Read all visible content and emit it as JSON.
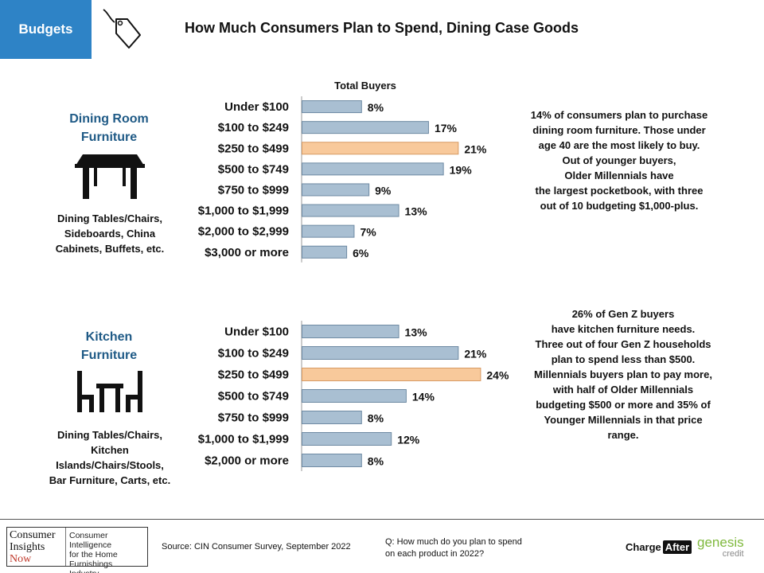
{
  "header": {
    "badge_label": "Budgets",
    "title": "How Much Consumers Plan to Spend, Dining Case Goods",
    "icon": "price-tag-icon"
  },
  "chart_data": [
    {
      "type": "bar",
      "orientation": "horizontal",
      "title": "",
      "series_label": "Total Buyers",
      "categories": [
        "Under $100",
        "$100 to $249",
        "$250 to $499",
        "$500 to $749",
        "$750 to $999",
        "$1,000 to $1,999",
        "$2,000 to $2,999",
        "$3,000 or more"
      ],
      "values": [
        8,
        17,
        21,
        19,
        9,
        13,
        7,
        6
      ],
      "value_labels": [
        "8%",
        "17%",
        "21%",
        "19%",
        "9%",
        "13%",
        "7%",
        "6%"
      ],
      "highlight_index": 2,
      "unit": "%",
      "xlim": [
        0,
        30
      ],
      "grid": false
    },
    {
      "type": "bar",
      "orientation": "horizontal",
      "title": "",
      "categories": [
        "Under $100",
        "$100 to $249",
        "$250 to $499",
        "$500 to $749",
        "$750 to $999",
        "$1,000 to $1,999",
        "$2,000 or more"
      ],
      "values": [
        13,
        21,
        24,
        14,
        8,
        12,
        8
      ],
      "value_labels": [
        "13%",
        "21%",
        "24%",
        "14%",
        "8%",
        "12%",
        "8%"
      ],
      "highlight_index": 2,
      "unit": "%",
      "xlim": [
        0,
        30
      ],
      "grid": false
    }
  ],
  "colors": {
    "bar": "#a9bfd2",
    "bar_stroke": "#6e8aa3",
    "highlight": "#f8c99b",
    "highlight_stroke": "#d79a63",
    "heading": "#1f5a86",
    "badge": "#2e83c6"
  },
  "sections": [
    {
      "heading_line1": "Dining Room",
      "heading_line2": "Furniture",
      "icon": "dining-table-icon",
      "sub_lines": [
        "Dining Tables/Chairs,",
        "Sideboards, China",
        "Cabinets, Buffets, etc."
      ],
      "note_lines": [
        "14% of consumers plan to purchase",
        "dining room furniture. Those under",
        "age 40 are the most likely to buy.",
        "Out of younger buyers,",
        "Older Millennials have",
        "the largest pocketbook, with three",
        "out of 10 budgeting $1,000-plus."
      ]
    },
    {
      "heading_line1": "Kitchen",
      "heading_line2": "Furniture",
      "icon": "table-and-chairs-icon",
      "sub_lines": [
        "Dining Tables/Chairs,",
        "Kitchen",
        "Islands/Chairs/Stools,",
        "Bar Furniture, Carts, etc."
      ],
      "note_lines": [
        "26% of Gen Z buyers",
        "have kitchen furniture needs.",
        "Three out of four Gen Z households",
        "plan to spend less than $500.",
        "Millennials buyers plan to pay more,",
        "with half of Older Millennials",
        "budgeting $500 or more and 35% of",
        "Younger Millennials in that price",
        "range."
      ]
    }
  ],
  "footer": {
    "logo_left": [
      "Consumer",
      "Insights",
      "Now"
    ],
    "logo_right": [
      "Consumer Intelligence",
      "for the Home",
      "Furnishings Industry"
    ],
    "source": "Source: CIN Consumer Survey, September  2022",
    "question_lines": [
      "Q: How much do you plan to spend",
      "on each product in 2022?"
    ],
    "sponsor1_a": "Charge",
    "sponsor1_b": "After",
    "sponsor2": "genesis",
    "sponsor2_sub": "credit"
  }
}
